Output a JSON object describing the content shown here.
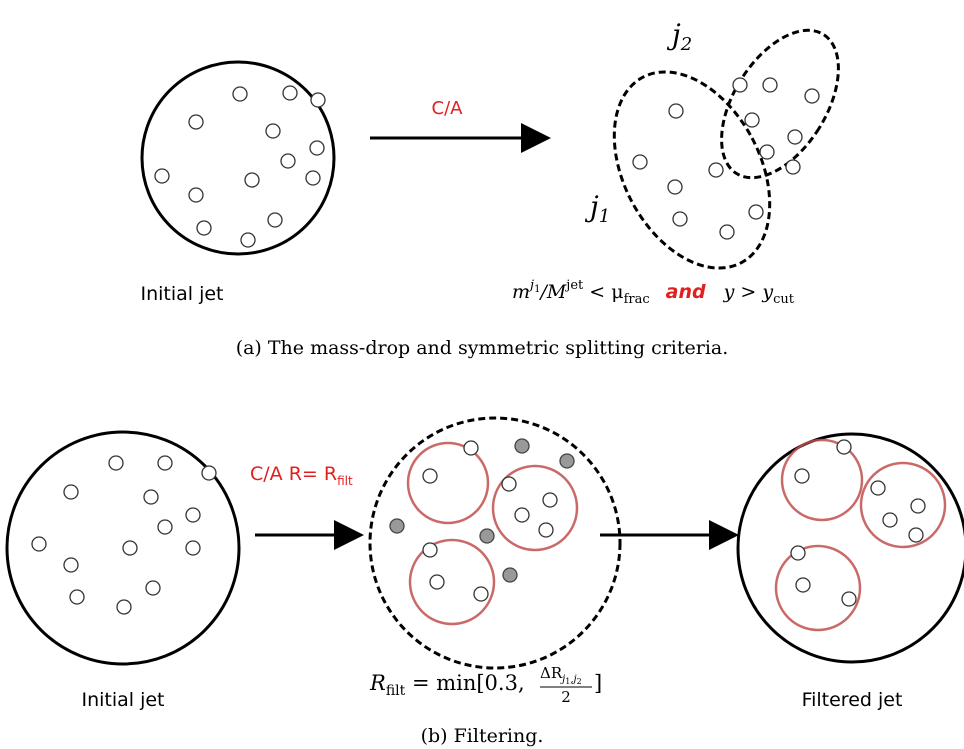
{
  "panel_a": {
    "initial_label": "Initial jet",
    "arrow_label": "C/A",
    "j2": "j",
    "j2_sub": "2",
    "j1": "j",
    "j1_sub": "1",
    "formula": [
      "m",
      "j",
      "1",
      "/M",
      "jet",
      " < μ",
      "frac",
      "and",
      "y > y",
      "cut"
    ],
    "caption": "(a) The mass-drop and symmetric splitting criteria."
  },
  "panel_b": {
    "initial_label": "Initial jet",
    "arrow_label": "C/A R= R",
    "arrow_label_sub": "filt",
    "formula": [
      "R",
      "filt",
      " = min[0.3, ",
      "ΔR",
      "j",
      "1",
      ",j",
      "2",
      "2",
      "]"
    ],
    "filtered_label": "Filtered jet",
    "caption": "(b) Filtering."
  }
}
